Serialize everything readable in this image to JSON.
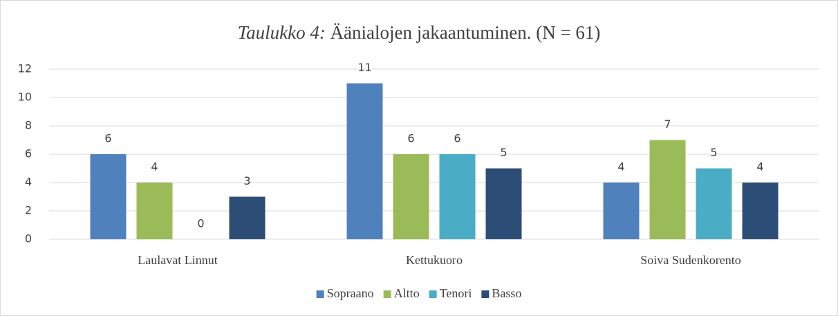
{
  "chart_data": {
    "type": "bar",
    "title": [
      "Taulukko 4:",
      "Äänialojen jakaantuminen. (N = 61)"
    ],
    "categories": [
      "Laulavat Linnut",
      "Kettukuoro",
      "Soiva Sudenkorento"
    ],
    "series": [
      {
        "name": "Sopraano",
        "color": "#4f81bd",
        "values": [
          6,
          11,
          4
        ]
      },
      {
        "name": "Altto",
        "color": "#9bbb59",
        "values": [
          4,
          6,
          7
        ]
      },
      {
        "name": "Tenori",
        "color": "#4bacc6",
        "values": [
          0,
          6,
          5
        ]
      },
      {
        "name": "Basso",
        "color": "#2c4d75",
        "values": [
          3,
          5,
          4
        ]
      }
    ],
    "ylim": [
      0,
      12
    ],
    "yticks": [
      0,
      2,
      4,
      6,
      8,
      10,
      12
    ],
    "grid": true,
    "legend": "bottom"
  }
}
